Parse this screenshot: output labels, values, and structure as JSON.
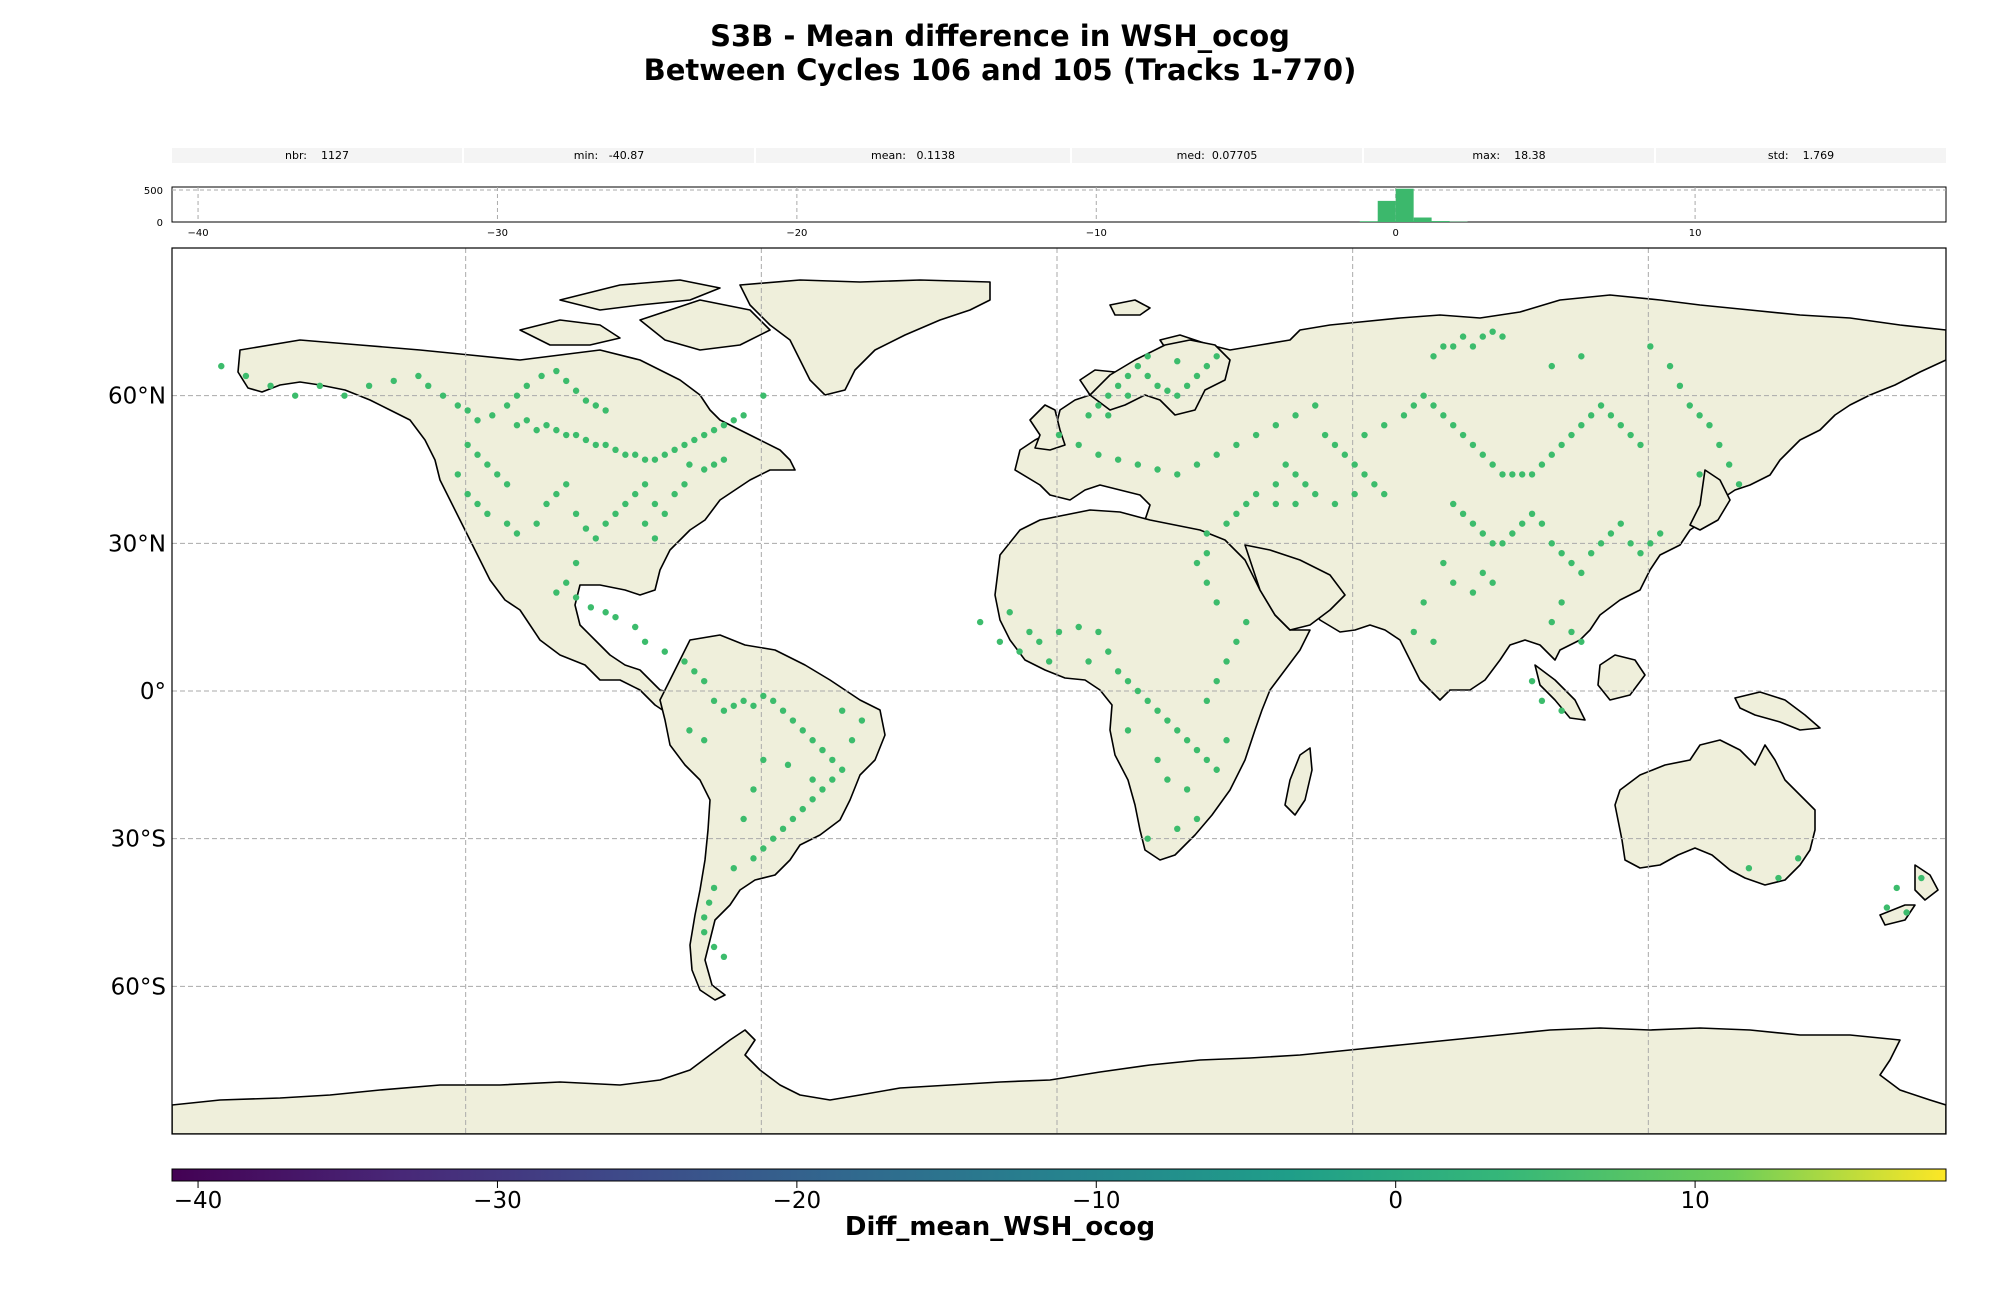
{
  "title": "S3B - Mean difference in WSH_ocog",
  "subtitle": "Between Cycles 106 and 105 (Tracks 1-770)",
  "stats": [
    {
      "label": "nbr:",
      "value": "1127"
    },
    {
      "label": "min:",
      "value": "-40.87"
    },
    {
      "label": "mean:",
      "value": "0.1138"
    },
    {
      "label": "med:",
      "value": "0.07705"
    },
    {
      "label": "max:",
      "value": "18.38"
    },
    {
      "label": "std:",
      "value": "1.769"
    }
  ],
  "histogram": {
    "x_range": [
      -40.87,
      18.38
    ],
    "y_ticks": [
      "500",
      "0"
    ],
    "x_ticks": [
      "−40",
      "−30",
      "−20",
      "−10",
      "0",
      "10"
    ],
    "bins": [
      {
        "x0": -1.2,
        "x1": -0.6,
        "count": 12
      },
      {
        "x0": -0.6,
        "x1": 0.0,
        "count": 330
      },
      {
        "x0": 0.0,
        "x1": 0.6,
        "count": 520
      },
      {
        "x0": 0.6,
        "x1": 1.2,
        "count": 70
      },
      {
        "x0": 1.2,
        "x1": 1.8,
        "count": 15
      },
      {
        "x0": 1.8,
        "x1": 2.4,
        "count": 5
      }
    ],
    "bar_color": "#3cb86c"
  },
  "map": {
    "lat_labels": [
      "60°N",
      "30°N",
      "0°",
      "30°S",
      "60°S"
    ],
    "land_color": "#efefdb",
    "coast_color": "#000000",
    "grid_color": "#aaaaaa",
    "point_color": "#3cbc6c",
    "points": [
      [
        -145,
        60
      ],
      [
        -140,
        62
      ],
      [
        -135,
        63
      ],
      [
        -130,
        64
      ],
      [
        -128,
        62
      ],
      [
        -125,
        60
      ],
      [
        -122,
        58
      ],
      [
        -120,
        57
      ],
      [
        -118,
        55
      ],
      [
        -115,
        56
      ],
      [
        -112,
        58
      ],
      [
        -110,
        60
      ],
      [
        -108,
        62
      ],
      [
        -105,
        64
      ],
      [
        -102,
        65
      ],
      [
        -100,
        63
      ],
      [
        -98,
        61
      ],
      [
        -96,
        59
      ],
      [
        -94,
        58
      ],
      [
        -92,
        57
      ],
      [
        -110,
        54
      ],
      [
        -108,
        55
      ],
      [
        -106,
        53
      ],
      [
        -104,
        54
      ],
      [
        -102,
        53
      ],
      [
        -100,
        52
      ],
      [
        -98,
        52
      ],
      [
        -96,
        51
      ],
      [
        -94,
        50
      ],
      [
        -92,
        50
      ],
      [
        -90,
        49
      ],
      [
        -88,
        48
      ],
      [
        -86,
        48
      ],
      [
        -84,
        47
      ],
      [
        -82,
        47
      ],
      [
        -80,
        48
      ],
      [
        -78,
        49
      ],
      [
        -76,
        50
      ],
      [
        -74,
        51
      ],
      [
        -72,
        52
      ],
      [
        -70,
        53
      ],
      [
        -68,
        54
      ],
      [
        -66,
        55
      ],
      [
        -64,
        56
      ],
      [
        -75,
        46
      ],
      [
        -72,
        45
      ],
      [
        -70,
        46
      ],
      [
        -68,
        47
      ],
      [
        -120,
        50
      ],
      [
        -118,
        48
      ],
      [
        -116,
        46
      ],
      [
        -114,
        44
      ],
      [
        -112,
        42
      ],
      [
        -122,
        44
      ],
      [
        -120,
        40
      ],
      [
        -118,
        38
      ],
      [
        -116,
        36
      ],
      [
        -112,
        34
      ],
      [
        -110,
        32
      ],
      [
        -106,
        34
      ],
      [
        -104,
        38
      ],
      [
        -102,
        40
      ],
      [
        -100,
        42
      ],
      [
        -98,
        36
      ],
      [
        -96,
        33
      ],
      [
        -94,
        31
      ],
      [
        -92,
        34
      ],
      [
        -90,
        36
      ],
      [
        -88,
        38
      ],
      [
        -86,
        40
      ],
      [
        -84,
        42
      ],
      [
        -82,
        38
      ],
      [
        -80,
        36
      ],
      [
        -78,
        40
      ],
      [
        -76,
        42
      ],
      [
        -84,
        34
      ],
      [
        -82,
        31
      ],
      [
        -98,
        26
      ],
      [
        -100,
        22
      ],
      [
        -102,
        20
      ],
      [
        -98,
        19
      ],
      [
        -95,
        17
      ],
      [
        -92,
        16
      ],
      [
        -90,
        15
      ],
      [
        -86,
        13
      ],
      [
        -84,
        10
      ],
      [
        -80,
        8
      ],
      [
        -76,
        6
      ],
      [
        -74,
        4
      ],
      [
        -72,
        2
      ],
      [
        -70,
        -2
      ],
      [
        -68,
        -4
      ],
      [
        -66,
        -3
      ],
      [
        -64,
        -2
      ],
      [
        -62,
        -3
      ],
      [
        -60,
        -1
      ],
      [
        -58,
        -2
      ],
      [
        -56,
        -4
      ],
      [
        -54,
        -6
      ],
      [
        -52,
        -8
      ],
      [
        -50,
        -10
      ],
      [
        -48,
        -12
      ],
      [
        -46,
        -14
      ],
      [
        -44,
        -16
      ],
      [
        -46,
        -18
      ],
      [
        -48,
        -20
      ],
      [
        -50,
        -22
      ],
      [
        -52,
        -24
      ],
      [
        -54,
        -26
      ],
      [
        -56,
        -28
      ],
      [
        -58,
        -30
      ],
      [
        -60,
        -32
      ],
      [
        -62,
        -34
      ],
      [
        -66,
        -36
      ],
      [
        -70,
        -40
      ],
      [
        -71,
        -43
      ],
      [
        -72,
        -46
      ],
      [
        -72,
        -49
      ],
      [
        -70,
        -52
      ],
      [
        -68,
        -54
      ],
      [
        -40,
        -6
      ],
      [
        -42,
        -10
      ],
      [
        -44,
        -4
      ],
      [
        -72,
        -10
      ],
      [
        -75,
        -8
      ],
      [
        -60,
        -14
      ],
      [
        -62,
        -20
      ],
      [
        -64,
        -26
      ],
      [
        -55,
        -15
      ],
      [
        -50,
        -18
      ],
      [
        -16,
        14
      ],
      [
        -12,
        10
      ],
      [
        -8,
        8
      ],
      [
        -4,
        10
      ],
      [
        0,
        12
      ],
      [
        4,
        13
      ],
      [
        8,
        12
      ],
      [
        10,
        8
      ],
      [
        12,
        4
      ],
      [
        14,
        2
      ],
      [
        16,
        0
      ],
      [
        18,
        -2
      ],
      [
        20,
        -4
      ],
      [
        22,
        -6
      ],
      [
        24,
        -8
      ],
      [
        26,
        -10
      ],
      [
        28,
        -12
      ],
      [
        30,
        -14
      ],
      [
        32,
        -16
      ],
      [
        34,
        -10
      ],
      [
        30,
        -2
      ],
      [
        32,
        2
      ],
      [
        34,
        6
      ],
      [
        36,
        10
      ],
      [
        38,
        14
      ],
      [
        32,
        18
      ],
      [
        30,
        22
      ],
      [
        28,
        26
      ],
      [
        30,
        28
      ],
      [
        26,
        -20
      ],
      [
        28,
        -26
      ],
      [
        24,
        -28
      ],
      [
        18,
        -30
      ],
      [
        22,
        -18
      ],
      [
        20,
        -14
      ],
      [
        14,
        -8
      ],
      [
        -2,
        6
      ],
      [
        -6,
        12
      ],
      [
        -10,
        16
      ],
      [
        6,
        6
      ],
      [
        6,
        56
      ],
      [
        8,
        58
      ],
      [
        10,
        60
      ],
      [
        12,
        62
      ],
      [
        14,
        64
      ],
      [
        16,
        66
      ],
      [
        18,
        64
      ],
      [
        20,
        62
      ],
      [
        22,
        61
      ],
      [
        24,
        60
      ],
      [
        26,
        62
      ],
      [
        28,
        64
      ],
      [
        30,
        66
      ],
      [
        32,
        68
      ],
      [
        24,
        67
      ],
      [
        18,
        68
      ],
      [
        14,
        60
      ],
      [
        10,
        56
      ],
      [
        0,
        52
      ],
      [
        4,
        50
      ],
      [
        8,
        48
      ],
      [
        12,
        47
      ],
      [
        16,
        46
      ],
      [
        20,
        45
      ],
      [
        24,
        44
      ],
      [
        28,
        46
      ],
      [
        32,
        48
      ],
      [
        36,
        50
      ],
      [
        40,
        52
      ],
      [
        44,
        54
      ],
      [
        48,
        56
      ],
      [
        52,
        58
      ],
      [
        54,
        52
      ],
      [
        56,
        50
      ],
      [
        58,
        48
      ],
      [
        60,
        46
      ],
      [
        62,
        44
      ],
      [
        64,
        42
      ],
      [
        66,
        40
      ],
      [
        52,
        40
      ],
      [
        50,
        42
      ],
      [
        48,
        44
      ],
      [
        46,
        46
      ],
      [
        44,
        42
      ],
      [
        40,
        40
      ],
      [
        38,
        38
      ],
      [
        36,
        36
      ],
      [
        34,
        34
      ],
      [
        30,
        32
      ],
      [
        44,
        38
      ],
      [
        48,
        38
      ],
      [
        56,
        38
      ],
      [
        60,
        40
      ],
      [
        62,
        52
      ],
      [
        66,
        54
      ],
      [
        70,
        56
      ],
      [
        72,
        58
      ],
      [
        74,
        60
      ],
      [
        76,
        58
      ],
      [
        78,
        56
      ],
      [
        80,
        54
      ],
      [
        82,
        52
      ],
      [
        84,
        50
      ],
      [
        86,
        48
      ],
      [
        88,
        46
      ],
      [
        90,
        44
      ],
      [
        92,
        44
      ],
      [
        94,
        44
      ],
      [
        96,
        44
      ],
      [
        98,
        46
      ],
      [
        100,
        48
      ],
      [
        102,
        50
      ],
      [
        104,
        52
      ],
      [
        106,
        54
      ],
      [
        108,
        56
      ],
      [
        110,
        58
      ],
      [
        112,
        56
      ],
      [
        114,
        54
      ],
      [
        116,
        52
      ],
      [
        118,
        50
      ],
      [
        76,
        68
      ],
      [
        78,
        70
      ],
      [
        80,
        70
      ],
      [
        82,
        72
      ],
      [
        84,
        70
      ],
      [
        86,
        72
      ],
      [
        88,
        73
      ],
      [
        90,
        72
      ],
      [
        100,
        66
      ],
      [
        106,
        68
      ],
      [
        120,
        70
      ],
      [
        124,
        66
      ],
      [
        126,
        62
      ],
      [
        128,
        58
      ],
      [
        130,
        56
      ],
      [
        132,
        54
      ],
      [
        134,
        50
      ],
      [
        136,
        46
      ],
      [
        138,
        42
      ],
      [
        130,
        44
      ],
      [
        80,
        38
      ],
      [
        82,
        36
      ],
      [
        84,
        34
      ],
      [
        86,
        32
      ],
      [
        88,
        30
      ],
      [
        90,
        30
      ],
      [
        92,
        32
      ],
      [
        94,
        34
      ],
      [
        96,
        36
      ],
      [
        98,
        34
      ],
      [
        100,
        30
      ],
      [
        102,
        28
      ],
      [
        104,
        26
      ],
      [
        106,
        24
      ],
      [
        108,
        28
      ],
      [
        110,
        30
      ],
      [
        112,
        32
      ],
      [
        114,
        34
      ],
      [
        116,
        30
      ],
      [
        118,
        28
      ],
      [
        120,
        30
      ],
      [
        122,
        32
      ],
      [
        78,
        26
      ],
      [
        80,
        22
      ],
      [
        84,
        20
      ],
      [
        86,
        24
      ],
      [
        88,
        22
      ],
      [
        74,
        18
      ],
      [
        72,
        12
      ],
      [
        76,
        10
      ],
      [
        100,
        14
      ],
      [
        102,
        18
      ],
      [
        104,
        12
      ],
      [
        106,
        10
      ],
      [
        96,
        2
      ],
      [
        98,
        -2
      ],
      [
        102,
        -4
      ],
      [
        140,
        -36
      ],
      [
        146,
        -38
      ],
      [
        150,
        -34
      ],
      [
        168,
        -44
      ],
      [
        170,
        -40
      ],
      [
        175,
        -38
      ],
      [
        172,
        -45
      ],
      [
        -150,
        62
      ],
      [
        -155,
        60
      ],
      [
        -160,
        62
      ],
      [
        -165,
        64
      ],
      [
        -170,
        66
      ],
      [
        -60,
        60
      ]
    ]
  },
  "colorbar": {
    "label": "Diff_mean_WSH_ocog",
    "range": [
      -40.87,
      18.38
    ],
    "ticks": [
      "−40",
      "−30",
      "−20",
      "−10",
      "0",
      "10"
    ]
  }
}
